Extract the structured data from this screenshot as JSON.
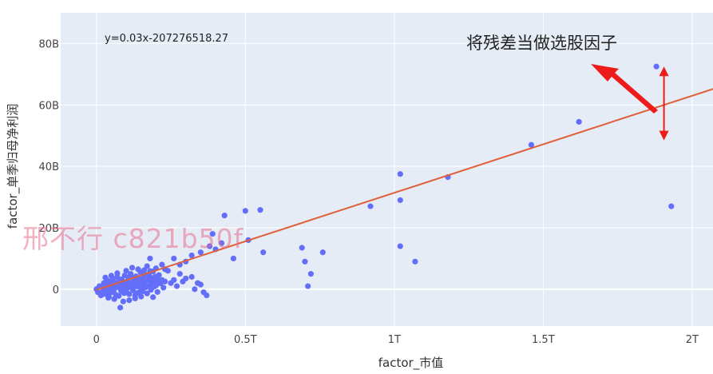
{
  "chart_data": {
    "type": "scatter",
    "title": "",
    "xlabel": "factor_市值",
    "ylabel": "factor_单季归母净利润",
    "xlim": [
      -0.12,
      2.07
    ],
    "ylim": [
      -12,
      90
    ],
    "x_ticks": [
      {
        "value": 0,
        "label": "0"
      },
      {
        "value": 0.5,
        "label": "0.5T"
      },
      {
        "value": 1,
        "label": "1T"
      },
      {
        "value": 1.5,
        "label": "1.5T"
      },
      {
        "value": 2,
        "label": "2T"
      }
    ],
    "y_ticks": [
      {
        "value": 0,
        "label": "0"
      },
      {
        "value": 20,
        "label": "20B"
      },
      {
        "value": 40,
        "label": "40B"
      },
      {
        "value": 60,
        "label": "60B"
      },
      {
        "value": 80,
        "label": "80B"
      }
    ],
    "x_unit": "T",
    "y_unit": "B",
    "grid": true,
    "points": [
      [
        0.0,
        0.0
      ],
      [
        0.005,
        -1.0
      ],
      [
        0.01,
        1.0
      ],
      [
        0.015,
        -2.0
      ],
      [
        0.02,
        0.5
      ],
      [
        0.022,
        -0.5
      ],
      [
        0.025,
        2.0
      ],
      [
        0.028,
        1.5
      ],
      [
        0.03,
        -1.5
      ],
      [
        0.033,
        0.8
      ],
      [
        0.035,
        3.0
      ],
      [
        0.038,
        -0.8
      ],
      [
        0.04,
        1.2
      ],
      [
        0.042,
        -2.5
      ],
      [
        0.045,
        2.5
      ],
      [
        0.048,
        0.3
      ],
      [
        0.05,
        -1.0
      ],
      [
        0.052,
        1.8
      ],
      [
        0.055,
        3.5
      ],
      [
        0.058,
        -0.3
      ],
      [
        0.06,
        0.9
      ],
      [
        0.063,
        2.2
      ],
      [
        0.065,
        -1.8
      ],
      [
        0.068,
        1.4
      ],
      [
        0.07,
        4.0
      ],
      [
        0.073,
        0.6
      ],
      [
        0.075,
        -2.2
      ],
      [
        0.078,
        2.8
      ],
      [
        0.08,
        1.1
      ],
      [
        0.083,
        -0.6
      ],
      [
        0.085,
        3.2
      ],
      [
        0.088,
        0.2
      ],
      [
        0.09,
        2.0
      ],
      [
        0.093,
        -1.3
      ],
      [
        0.095,
        4.5
      ],
      [
        0.098,
        1.6
      ],
      [
        0.1,
        -0.9
      ],
      [
        0.103,
        2.6
      ],
      [
        0.105,
        0.4
      ],
      [
        0.108,
        3.8
      ],
      [
        0.11,
        -1.6
      ],
      [
        0.113,
        1.9
      ],
      [
        0.115,
        5.0
      ],
      [
        0.118,
        0.7
      ],
      [
        0.12,
        2.3
      ],
      [
        0.123,
        -0.4
      ],
      [
        0.125,
        3.6
      ],
      [
        0.128,
        1.3
      ],
      [
        0.13,
        -2.0
      ],
      [
        0.133,
        4.2
      ],
      [
        0.135,
        0.9
      ],
      [
        0.138,
        2.7
      ],
      [
        0.14,
        -1.1
      ],
      [
        0.143,
        3.3
      ],
      [
        0.145,
        1.7
      ],
      [
        0.148,
        5.5
      ],
      [
        0.15,
        0.2
      ],
      [
        0.153,
        2.4
      ],
      [
        0.155,
        -0.7
      ],
      [
        0.158,
        3.9
      ],
      [
        0.16,
        1.5
      ],
      [
        0.163,
        4.8
      ],
      [
        0.165,
        0.6
      ],
      [
        0.168,
        2.9
      ],
      [
        0.17,
        -1.4
      ],
      [
        0.173,
        3.1
      ],
      [
        0.175,
        1.0
      ],
      [
        0.178,
        4.3
      ],
      [
        0.18,
        2.1
      ],
      [
        0.183,
        -0.2
      ],
      [
        0.185,
        3.7
      ],
      [
        0.188,
        1.8
      ],
      [
        0.19,
        5.8
      ],
      [
        0.193,
        0.8
      ],
      [
        0.195,
        2.6
      ],
      [
        0.198,
        4.1
      ],
      [
        0.2,
        1.2
      ],
      [
        0.203,
        3.4
      ],
      [
        0.205,
        -0.9
      ],
      [
        0.208,
        2.2
      ],
      [
        0.21,
        4.6
      ],
      [
        0.215,
        1.9
      ],
      [
        0.22,
        3.0
      ],
      [
        0.225,
        0.5
      ],
      [
        0.23,
        2.5
      ],
      [
        0.12,
        7.0
      ],
      [
        0.14,
        6.5
      ],
      [
        0.1,
        6.0
      ],
      [
        0.17,
        7.5
      ],
      [
        0.13,
        -3.0
      ],
      [
        0.09,
        -4.0
      ],
      [
        0.06,
        -3.2
      ],
      [
        0.04,
        -2.8
      ],
      [
        0.02,
        -1.7
      ],
      [
        0.16,
        6.2
      ],
      [
        0.19,
        -2.6
      ],
      [
        0.08,
        -6.0
      ],
      [
        0.11,
        -3.6
      ],
      [
        0.07,
        5.2
      ],
      [
        0.05,
        4.4
      ],
      [
        0.03,
        3.8
      ],
      [
        0.15,
        -2.4
      ],
      [
        0.18,
        5.9
      ],
      [
        0.2,
        6.8
      ],
      [
        0.22,
        8.0
      ],
      [
        0.24,
        6.0
      ],
      [
        0.25,
        2.0
      ],
      [
        0.26,
        3.0
      ],
      [
        0.27,
        1.0
      ],
      [
        0.28,
        5.0
      ],
      [
        0.29,
        2.5
      ],
      [
        0.3,
        3.5
      ],
      [
        0.32,
        4.0
      ],
      [
        0.33,
        0.0
      ],
      [
        0.34,
        2.0
      ],
      [
        0.36,
        -1.0
      ],
      [
        0.35,
        1.5
      ],
      [
        0.37,
        -2.0
      ],
      [
        0.3,
        9.0
      ],
      [
        0.32,
        11.0
      ],
      [
        0.35,
        12.0
      ],
      [
        0.38,
        14.0
      ],
      [
        0.4,
        13.0
      ],
      [
        0.42,
        15.0
      ],
      [
        0.28,
        8.0
      ],
      [
        0.26,
        10.0
      ],
      [
        0.23,
        6.5
      ],
      [
        0.18,
        10.0
      ],
      [
        0.39,
        18.0
      ],
      [
        0.43,
        24.0
      ],
      [
        0.5,
        25.5
      ],
      [
        0.55,
        25.8
      ],
      [
        0.51,
        16.0
      ],
      [
        0.46,
        10.0
      ],
      [
        0.56,
        12.0
      ],
      [
        0.69,
        13.5
      ],
      [
        0.7,
        9.0
      ],
      [
        0.72,
        5.0
      ],
      [
        0.71,
        1.0
      ],
      [
        0.76,
        12.0
      ],
      [
        0.92,
        27.0
      ],
      [
        1.02,
        37.5
      ],
      [
        1.02,
        29.0
      ],
      [
        1.02,
        14.0
      ],
      [
        1.07,
        9.0
      ],
      [
        1.18,
        36.5
      ],
      [
        1.46,
        47.0
      ],
      [
        1.62,
        54.5
      ],
      [
        1.88,
        72.5
      ],
      [
        1.93,
        27.0
      ]
    ],
    "fit_line": {
      "slope": 0.03,
      "intercept": -0.207276518,
      "x_range": [
        0,
        2.07
      ]
    },
    "equation_label": "y=0.03x-207276518.27",
    "annotation": {
      "text": "将残差当做选股因子",
      "residual_point": [
        1.9,
        72.5
      ],
      "residual_line_value": 49.5
    },
    "watermark": "邢不行 c821b50f",
    "colors": {
      "plot_background": "#e5ecf6",
      "grid": "#ffffff",
      "points": "#636efa",
      "fit_line": "#e0603a",
      "arrow": "#ee1b1b"
    }
  }
}
